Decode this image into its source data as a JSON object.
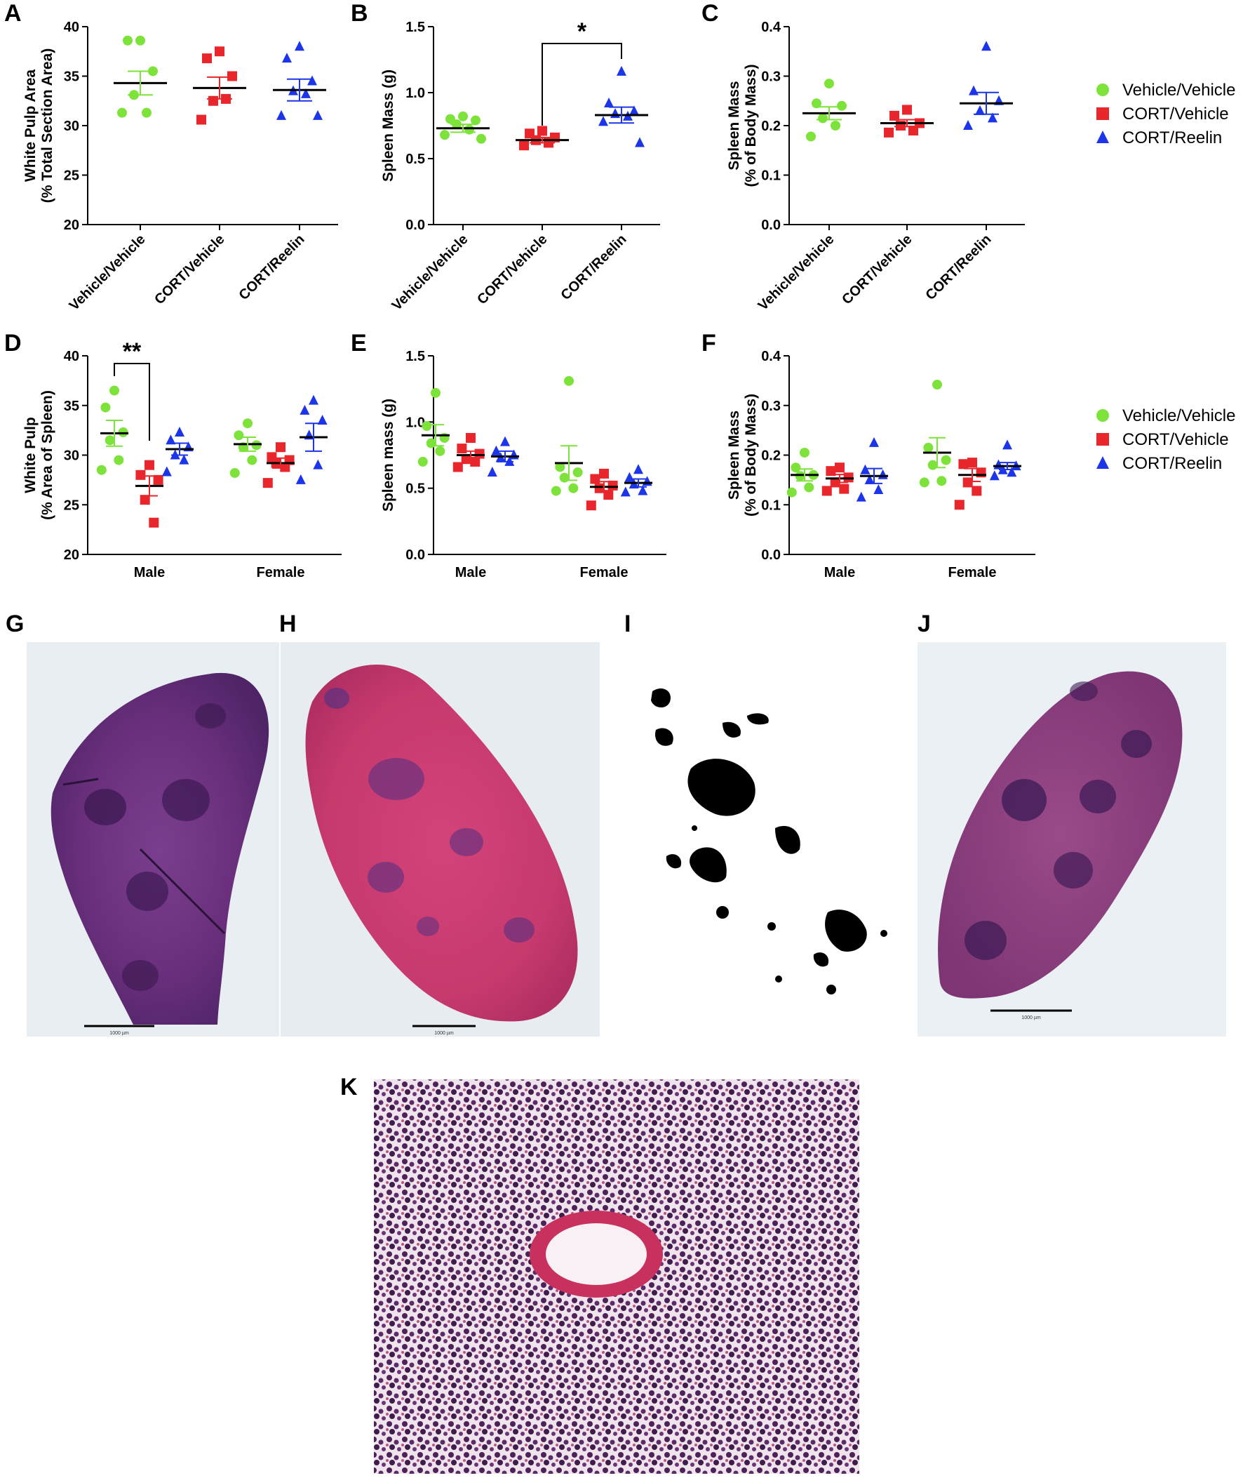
{
  "colors": {
    "vehicle_vehicle": "#7de33a",
    "cort_vehicle": "#e8262b",
    "cort_reelin": "#1d35e8",
    "axis": "#000000"
  },
  "legend": {
    "top": {
      "items": [
        {
          "label": "Vehicle/Vehicle",
          "marker": "circle",
          "color": "#7de33a"
        },
        {
          "label": "CORT/Vehicle",
          "marker": "square",
          "color": "#e8262b"
        },
        {
          "label": "CORT/Reelin",
          "marker": "triangle",
          "color": "#1d35e8"
        }
      ]
    },
    "bottom": {
      "items": [
        {
          "label": "Vehicle/Vehicle",
          "marker": "circle",
          "color": "#7de33a"
        },
        {
          "label": "CORT/Vehicle",
          "marker": "square",
          "color": "#e8262b"
        },
        {
          "label": "CORT/Reelin",
          "marker": "triangle",
          "color": "#1d35e8"
        }
      ]
    }
  },
  "chart_data": [
    {
      "panel": "A",
      "type": "scatter",
      "ylabel": "White Pulp Area\n(% Total Section Area)",
      "ylim": [
        20,
        40
      ],
      "yticks": [
        20,
        25,
        30,
        35,
        40
      ],
      "categories": [
        "Vehicle/Vehicle",
        "CORT/Vehicle",
        "CORT/Reelin"
      ],
      "series": [
        {
          "name": "Vehicle/Vehicle",
          "color": "#7de33a",
          "marker": "circle",
          "points": [
            38.6,
            38.6,
            35.5,
            33.1,
            31.3,
            31.3
          ],
          "mean": 34.3,
          "sem": 1.2
        },
        {
          "name": "CORT/Vehicle",
          "color": "#e8262b",
          "marker": "square",
          "points": [
            37.5,
            36.8,
            35.0,
            32.5,
            32.7,
            30.6
          ],
          "mean": 33.8,
          "sem": 1.1
        },
        {
          "name": "CORT/Reelin",
          "color": "#1d35e8",
          "marker": "triangle",
          "points": [
            38.0,
            36.8,
            34.5,
            33.5,
            33.2,
            31.0,
            31.0
          ],
          "mean": 33.6,
          "sem": 1.1
        }
      ]
    },
    {
      "panel": "B",
      "type": "scatter",
      "ylabel": "Spleen Mass (g)",
      "ylim": [
        0.0,
        1.5
      ],
      "yticks": [
        "0.0",
        "0.5",
        "1.0",
        "1.5"
      ],
      "categories": [
        "Vehicle/Vehicle",
        "CORT/Vehicle",
        "CORT/Reelin"
      ],
      "series": [
        {
          "name": "Vehicle/Vehicle",
          "color": "#7de33a",
          "marker": "circle",
          "points": [
            0.82,
            0.8,
            0.79,
            0.76,
            0.72,
            0.68,
            0.65
          ],
          "mean": 0.73,
          "sem": 0.03
        },
        {
          "name": "CORT/Vehicle",
          "color": "#e8262b",
          "marker": "square",
          "points": [
            0.71,
            0.69,
            0.66,
            0.64,
            0.62,
            0.6
          ],
          "mean": 0.64,
          "sem": 0.02
        },
        {
          "name": "CORT/Reelin",
          "color": "#1d35e8",
          "marker": "triangle",
          "points": [
            1.16,
            0.92,
            0.86,
            0.84,
            0.82,
            0.78,
            0.62
          ],
          "mean": 0.83,
          "sem": 0.06
        }
      ],
      "annotation": {
        "text": "*",
        "from": 1,
        "to": 2
      }
    },
    {
      "panel": "C",
      "type": "scatter",
      "ylabel": "Spleen Mass\n(% of Body Mass)",
      "ylim": [
        0.0,
        0.4
      ],
      "yticks": [
        "0.0",
        "0.1",
        "0.2",
        "0.3",
        "0.4"
      ],
      "categories": [
        "Vehicle/Vehicle",
        "CORT/Vehicle",
        "CORT/Reelin"
      ],
      "series": [
        {
          "name": "Vehicle/Vehicle",
          "color": "#7de33a",
          "marker": "circle",
          "points": [
            0.285,
            0.245,
            0.24,
            0.215,
            0.2,
            0.178
          ],
          "mean": 0.225,
          "sem": 0.013
        },
        {
          "name": "CORT/Vehicle",
          "color": "#e8262b",
          "marker": "square",
          "points": [
            0.232,
            0.22,
            0.205,
            0.2,
            0.19,
            0.186
          ],
          "mean": 0.205,
          "sem": 0.007
        },
        {
          "name": "CORT/Reelin",
          "color": "#1d35e8",
          "marker": "triangle",
          "points": [
            0.36,
            0.27,
            0.25,
            0.23,
            0.215,
            0.2
          ],
          "mean": 0.245,
          "sem": 0.022
        }
      ]
    },
    {
      "panel": "D",
      "type": "scatter",
      "ylabel": "White Pulp\n(% Area of Spleen)",
      "ylim": [
        20,
        40
      ],
      "yticks": [
        20,
        25,
        30,
        35,
        40
      ],
      "groups": [
        "Male",
        "Female"
      ],
      "series": [
        {
          "name": "Vehicle/Vehicle",
          "color": "#7de33a",
          "marker": "circle",
          "male": [
            36.5,
            34.8,
            32.3,
            31.5,
            29.5,
            28.5
          ],
          "male_mean": 32.2,
          "male_sem": 1.3,
          "female": [
            33.2,
            32.0,
            31.0,
            30.8,
            29.5,
            28.2
          ],
          "female_mean": 31.1,
          "female_sem": 0.7
        },
        {
          "name": "CORT/Vehicle",
          "color": "#e8262b",
          "marker": "square",
          "male": [
            29.0,
            28.0,
            27.5,
            25.5,
            23.2
          ],
          "male_mean": 26.9,
          "male_sem": 1.0,
          "female": [
            30.8,
            29.8,
            29.5,
            29.2,
            28.8,
            27.2
          ],
          "female_mean": 29.2,
          "female_sem": 0.5
        },
        {
          "name": "CORT/Reelin",
          "color": "#1d35e8",
          "marker": "triangle",
          "male": [
            32.3,
            31.5,
            30.8,
            30.0,
            29.5,
            28.3
          ],
          "male_mean": 30.6,
          "male_sem": 0.6,
          "female": [
            35.5,
            34.5,
            33.5,
            32.0,
            29.0,
            27.5
          ],
          "female_mean": 31.8,
          "female_sem": 1.4
        }
      ],
      "annotation": {
        "text": "**",
        "group": "Male",
        "from": 0,
        "to": 1
      }
    },
    {
      "panel": "E",
      "type": "scatter",
      "ylabel": "Spleen mass (g)",
      "ylim": [
        0.0,
        1.5
      ],
      "yticks": [
        "0.0",
        "0.5",
        "1.0",
        "1.5"
      ],
      "groups": [
        "Male",
        "Female"
      ],
      "series": [
        {
          "name": "Vehicle/Vehicle",
          "color": "#7de33a",
          "marker": "circle",
          "male": [
            1.22,
            0.97,
            0.88,
            0.84,
            0.78,
            0.7
          ],
          "male_mean": 0.9,
          "male_sem": 0.08,
          "female": [
            1.31,
            0.66,
            0.62,
            0.58,
            0.5,
            0.48
          ],
          "female_mean": 0.69,
          "female_sem": 0.13
        },
        {
          "name": "CORT/Vehicle",
          "color": "#e8262b",
          "marker": "square",
          "male": [
            0.88,
            0.8,
            0.76,
            0.72,
            0.7,
            0.66
          ],
          "male_mean": 0.75,
          "male_sem": 0.03,
          "female": [
            0.61,
            0.57,
            0.52,
            0.5,
            0.45,
            0.37
          ],
          "female_mean": 0.51,
          "female_sem": 0.04
        },
        {
          "name": "CORT/Reelin",
          "color": "#1d35e8",
          "marker": "triangle",
          "male": [
            0.85,
            0.78,
            0.75,
            0.73,
            0.7,
            0.62
          ],
          "male_mean": 0.74,
          "male_sem": 0.04,
          "female": [
            0.64,
            0.58,
            0.55,
            0.53,
            0.48,
            0.47
          ],
          "female_mean": 0.54,
          "female_sem": 0.03
        }
      ]
    },
    {
      "panel": "F",
      "type": "scatter",
      "ylabel": "Spleen Mass\n(% of Body Mass)",
      "ylim": [
        0.0,
        0.4
      ],
      "yticks": [
        "0.0",
        "0.1",
        "0.2",
        "0.3",
        "0.4"
      ],
      "groups": [
        "Male",
        "Female"
      ],
      "series": [
        {
          "name": "Vehicle/Vehicle",
          "color": "#7de33a",
          "marker": "circle",
          "male": [
            0.205,
            0.175,
            0.16,
            0.158,
            0.135,
            0.125
          ],
          "male_mean": 0.16,
          "male_sem": 0.012,
          "female": [
            0.342,
            0.215,
            0.19,
            0.18,
            0.148,
            0.145
          ],
          "female_mean": 0.205,
          "female_sem": 0.03
        },
        {
          "name": "CORT/Vehicle",
          "color": "#e8262b",
          "marker": "square",
          "male": [
            0.175,
            0.168,
            0.155,
            0.145,
            0.132,
            0.128
          ],
          "male_mean": 0.153,
          "male_sem": 0.008,
          "female": [
            0.185,
            0.182,
            0.165,
            0.145,
            0.128,
            0.1
          ],
          "female_mean": 0.16,
          "female_sem": 0.013
        },
        {
          "name": "CORT/Reelin",
          "color": "#1d35e8",
          "marker": "triangle",
          "male": [
            0.225,
            0.17,
            0.16,
            0.15,
            0.13,
            0.115
          ],
          "male_mean": 0.158,
          "male_sem": 0.015,
          "female": [
            0.22,
            0.18,
            0.178,
            0.17,
            0.165,
            0.158
          ],
          "female_mean": 0.178,
          "female_sem": 0.007
        }
      ]
    }
  ],
  "images": {
    "G": {
      "scale_bar": "1000 µm",
      "description_name": "he-spleen-section"
    },
    "H": {
      "scale_bar": "1000 µm",
      "description_name": "he-spleen-section"
    },
    "I": {
      "description_name": "thresholded-white-pulp-mask"
    },
    "J": {
      "scale_bar": "1000 µm",
      "description_name": "he-spleen-section"
    },
    "K": {
      "description_name": "he-high-magnification"
    }
  }
}
